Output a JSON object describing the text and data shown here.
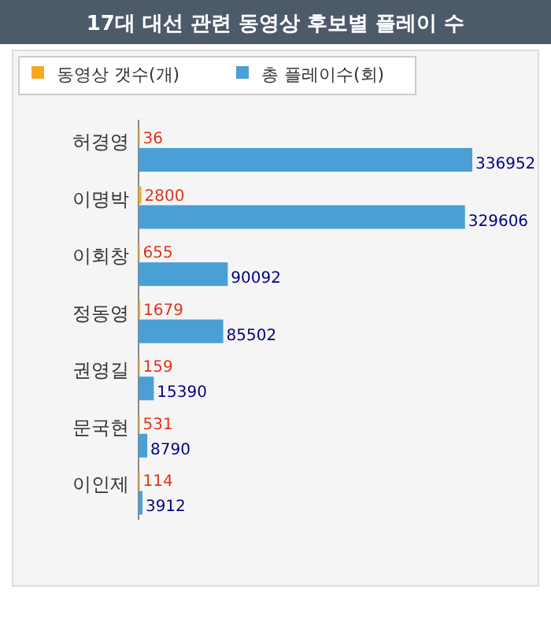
{
  "chart_data": {
    "type": "bar",
    "orientation": "horizontal",
    "title": "17대 대선 관련 동영상 후보별 플레이 수",
    "categories": [
      "허경영",
      "이명박",
      "이회창",
      "정동영",
      "권영길",
      "문국현",
      "이인제"
    ],
    "series": [
      {
        "name": "동영상 갯수(개)",
        "color": "#f7a823",
        "values": [
          36,
          2800,
          655,
          1679,
          159,
          531,
          114
        ],
        "value_labels": [
          "36",
          "2800",
          "655",
          "1679",
          "159",
          "531",
          "114"
        ]
      },
      {
        "name": "총 플레이수(회)",
        "color": "#4a9fd5",
        "values": [
          336952,
          329606,
          90092,
          85502,
          15390,
          8790,
          3912
        ]
      }
    ],
    "data_labels": true,
    "legend": "top",
    "grid": false
  }
}
